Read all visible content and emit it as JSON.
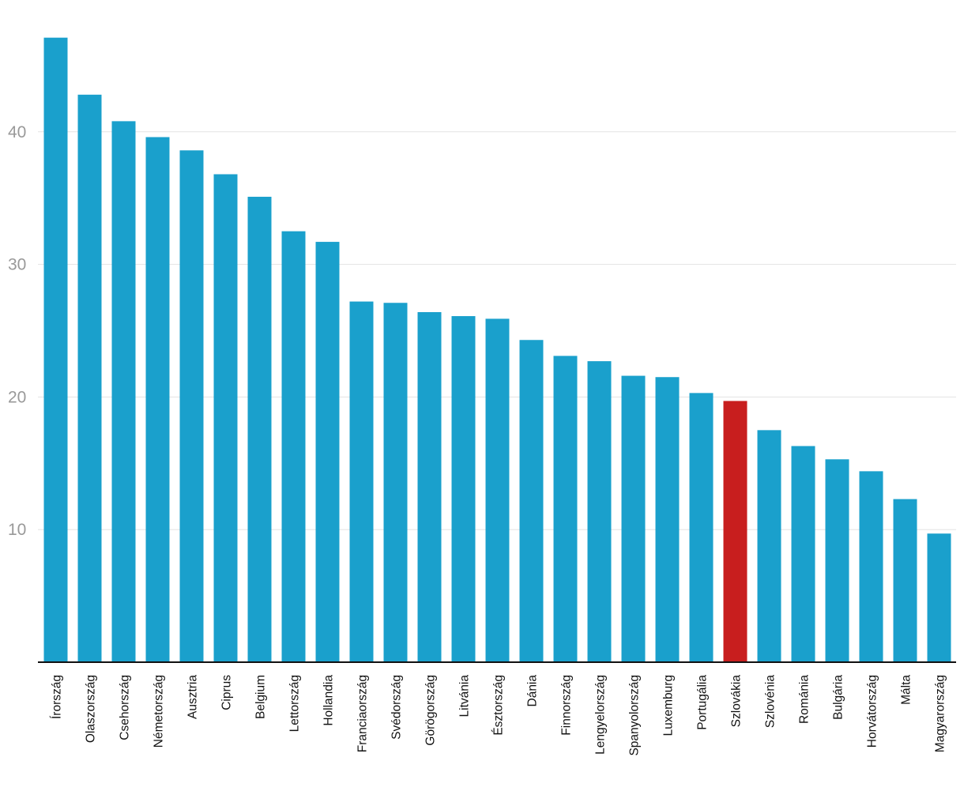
{
  "chart_data": {
    "type": "bar",
    "title": "",
    "xlabel": "",
    "ylabel": "",
    "ylim": [
      0,
      48
    ],
    "yticks": [
      10,
      20,
      30,
      40
    ],
    "categories": [
      "Írország",
      "Olaszország",
      "Csehország",
      "Németország",
      "Ausztria",
      "Ciprus",
      "Belgium",
      "Lettország",
      "Hollandia",
      "Franciaország",
      "Svédország",
      "Görögország",
      "Litvánia",
      "Észtország",
      "Dánia",
      "Finnország",
      "Lengyelország",
      "Spanyolország",
      "Luxemburg",
      "Portugália",
      "Szlovákia",
      "Szlovénia",
      "Románia",
      "Bulgária",
      "Horvátország",
      "Málta",
      "Magyarország"
    ],
    "values": [
      47.1,
      42.8,
      40.8,
      39.6,
      38.6,
      36.8,
      35.1,
      32.5,
      31.7,
      27.2,
      27.1,
      26.4,
      26.1,
      25.9,
      24.3,
      23.1,
      22.7,
      21.6,
      21.5,
      20.3,
      19.7,
      17.5,
      16.3,
      15.3,
      14.4,
      12.3,
      9.7
    ],
    "highlight": "Szlovákia",
    "colors": {
      "bar": "#1aa0cc",
      "highlight": "#c81e1e",
      "grid": "#e3e3e3",
      "ytick": "#999999",
      "xtick": "#111111",
      "axis": "#111111"
    }
  }
}
